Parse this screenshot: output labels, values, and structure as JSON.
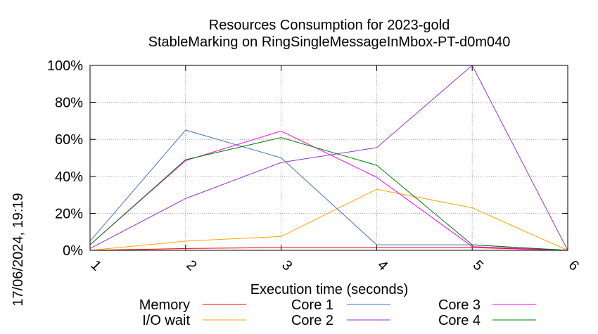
{
  "chart_data": {
    "type": "line",
    "title_line1": "Resources Consumption for 2023-gold",
    "title_line2": "StableMarking on RingSingleMessageInMbox-PT-d0m040",
    "xlabel": "Execution time (seconds)",
    "ylabel": "",
    "side_label": "17/06/2024, 19:19",
    "x": [
      1,
      2,
      3,
      4,
      5,
      6
    ],
    "xlim": [
      1,
      6
    ],
    "ylim": [
      0,
      100
    ],
    "x_ticks": [
      "1",
      "2",
      "3",
      "4",
      "5",
      "6"
    ],
    "y_ticks": [
      "0%",
      "20%",
      "40%",
      "60%",
      "80%",
      "100%"
    ],
    "y_tick_values": [
      0,
      20,
      40,
      60,
      80,
      100
    ],
    "grid": true,
    "legend_position": "bottom",
    "series": [
      {
        "name": "Memory",
        "color": "#ff0000",
        "values": [
          0,
          1,
          1.5,
          1.5,
          1.5,
          0
        ]
      },
      {
        "name": "I/O wait",
        "color": "#ffa500",
        "values": [
          0,
          5,
          7.5,
          33,
          23,
          0
        ]
      },
      {
        "name": "Core 1",
        "color": "#4472c4",
        "values": [
          5,
          65,
          50,
          3,
          3,
          0
        ]
      },
      {
        "name": "Core 2",
        "color": "#9932cc",
        "values": [
          1,
          28,
          47.5,
          55.5,
          100,
          0
        ]
      },
      {
        "name": "Core 3",
        "color": "#ff00ff",
        "values": [
          3,
          48.5,
          64.5,
          39.5,
          2,
          0
        ]
      },
      {
        "name": "Core 4",
        "color": "#008000",
        "values": [
          3,
          49,
          61,
          46,
          3,
          0
        ]
      }
    ]
  }
}
